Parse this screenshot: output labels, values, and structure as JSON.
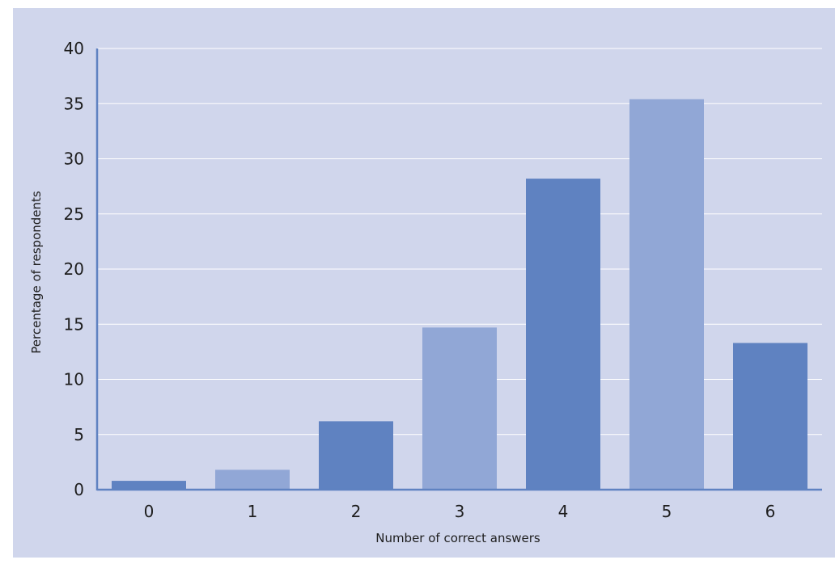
{
  "chart_data": {
    "type": "bar",
    "title": "",
    "xlabel": "Number of correct answers",
    "ylabel": "Percentage of respondents",
    "categories": [
      "0",
      "1",
      "2",
      "3",
      "4",
      "5",
      "6"
    ],
    "values": [
      0.8,
      1.8,
      6.2,
      14.7,
      28.2,
      35.4,
      13.3
    ],
    "ylim": [
      0,
      40
    ],
    "yticks": [
      "0",
      "5",
      "10",
      "15",
      "20",
      "25",
      "30",
      "35",
      "40"
    ],
    "grid": true,
    "colors": {
      "bar_dark": "#5f82c1",
      "bar_light": "#91a7d6",
      "axis": "#5f82c1",
      "grid": "#ffffff",
      "background": "#d0d6ec"
    }
  }
}
